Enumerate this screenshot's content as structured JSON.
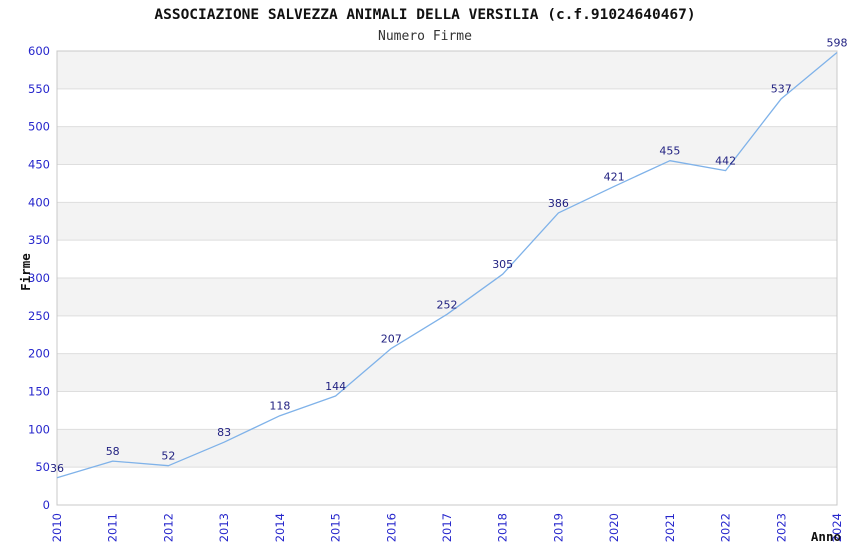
{
  "header": {
    "title": "ASSOCIAZIONE SALVEZZA ANIMALI DELLA VERSILIA (c.f.91024640467)",
    "subtitle": "Numero Firme"
  },
  "chart_data": {
    "type": "line",
    "title": "ASSOCIAZIONE SALVEZZA ANIMALI DELLA VERSILIA (c.f.91024640467)",
    "subtitle": "Numero Firme",
    "xlabel": "Anno",
    "ylabel": "Firme",
    "x": [
      "2010",
      "2011",
      "2012",
      "2013",
      "2014",
      "2015",
      "2016",
      "2017",
      "2018",
      "2019",
      "2020",
      "2021",
      "2022",
      "2023",
      "2024"
    ],
    "values": [
      36,
      58,
      52,
      83,
      118,
      144,
      207,
      252,
      305,
      386,
      421,
      455,
      442,
      537,
      598
    ],
    "ylim": [
      0,
      600
    ],
    "ytick_step": 50,
    "grid": "horizontal-alternating-bands",
    "legend_position": "none",
    "data_labels_shown": true,
    "colors": {
      "line": "#7fb2e9",
      "tick_label": "#2626cc",
      "point_label": "#1f1f80",
      "band_fill": "#f3f3f3",
      "gridline": "#dedede",
      "plot_border": "#c8c8c8",
      "background": "#ffffff"
    }
  }
}
